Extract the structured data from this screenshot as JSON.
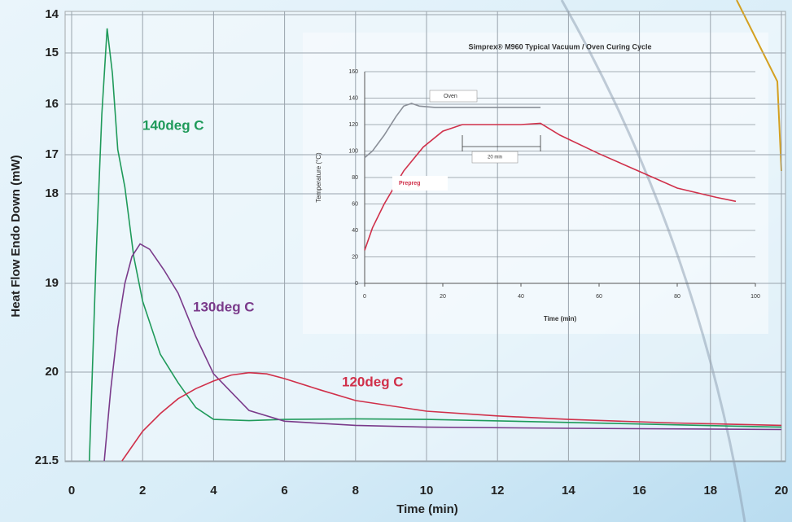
{
  "chart_data": [
    {
      "type": "line",
      "x_label": "Time (min)",
      "y_label": "Heat Flow Endo Down (mW)",
      "xlim": [
        0,
        20
      ],
      "xticks": [
        0,
        2,
        4,
        6,
        8,
        10,
        12,
        14,
        16,
        18,
        20
      ],
      "ylim": [
        14,
        21.5
      ],
      "yticks": [
        14,
        15,
        16,
        17,
        18,
        19,
        20,
        21.5
      ],
      "y_reversed": true,
      "grid": true,
      "series": [
        {
          "name": "140deg C",
          "color": "#1f9a5a",
          "x": [
            0.5,
            0.7,
            0.85,
            1.0,
            1.15,
            1.3,
            1.5,
            1.75,
            2,
            2.5,
            3,
            3.5,
            4,
            5,
            6,
            8,
            10,
            14,
            20
          ],
          "values": [
            21.5,
            18.6,
            16.2,
            14.36,
            15.4,
            16.9,
            17.83,
            18.7,
            19.2,
            19.8,
            20.18,
            20.6,
            20.8,
            20.82,
            20.8,
            20.79,
            20.8,
            20.85,
            20.93
          ]
        },
        {
          "name": "130deg C",
          "color": "#7a3a8a",
          "x": [
            0.92,
            1.1,
            1.3,
            1.5,
            1.7,
            1.93,
            2.2,
            2.6,
            3,
            3.5,
            4,
            5,
            6,
            8,
            10,
            14,
            20
          ],
          "values": [
            21.5,
            20.3,
            19.5,
            19.0,
            18.7,
            18.56,
            18.62,
            18.85,
            19.11,
            19.6,
            20.03,
            20.65,
            20.83,
            20.9,
            20.93,
            20.95,
            20.97
          ]
        },
        {
          "name": "120deg C",
          "color": "#d0304a",
          "x": [
            1.42,
            2,
            2.5,
            3,
            3.5,
            4,
            4.5,
            5,
            5.5,
            6,
            7,
            8,
            10,
            12,
            14,
            17,
            20
          ],
          "values": [
            21.5,
            21.0,
            20.7,
            20.45,
            20.28,
            20.15,
            20.05,
            20.01,
            20.03,
            20.11,
            20.3,
            20.48,
            20.66,
            20.74,
            20.8,
            20.86,
            20.9
          ]
        }
      ]
    },
    {
      "type": "line",
      "title": "Simprex® M960 Typical Vacuum / Oven Curing Cycle",
      "x_label": "Time (min)",
      "y_label": "Temperature (°C)",
      "xlim": [
        0,
        100
      ],
      "xticks": [
        0,
        20,
        40,
        60,
        80,
        100
      ],
      "ylim": [
        0,
        160
      ],
      "yticks": [
        0,
        20,
        40,
        60,
        80,
        100,
        120,
        140,
        160
      ],
      "grid": true,
      "annotations": [
        "20 min"
      ],
      "series": [
        {
          "name": "Oven",
          "color": "#8a8f98",
          "x": [
            0,
            2,
            5,
            8,
            10,
            12,
            14,
            18,
            25,
            35,
            45
          ],
          "values": [
            95,
            100,
            112,
            126,
            134,
            136,
            134,
            133,
            133,
            133,
            133
          ]
        },
        {
          "name": "Prepreg",
          "color": "#d0304a",
          "x": [
            0,
            2,
            5,
            10,
            15,
            20,
            25,
            30,
            40,
            45,
            50,
            60,
            70,
            80,
            90,
            95
          ],
          "values": [
            25,
            42,
            60,
            85,
            103,
            115,
            120,
            120,
            120,
            121,
            112,
            98,
            85,
            72,
            65,
            62
          ]
        }
      ]
    }
  ]
}
